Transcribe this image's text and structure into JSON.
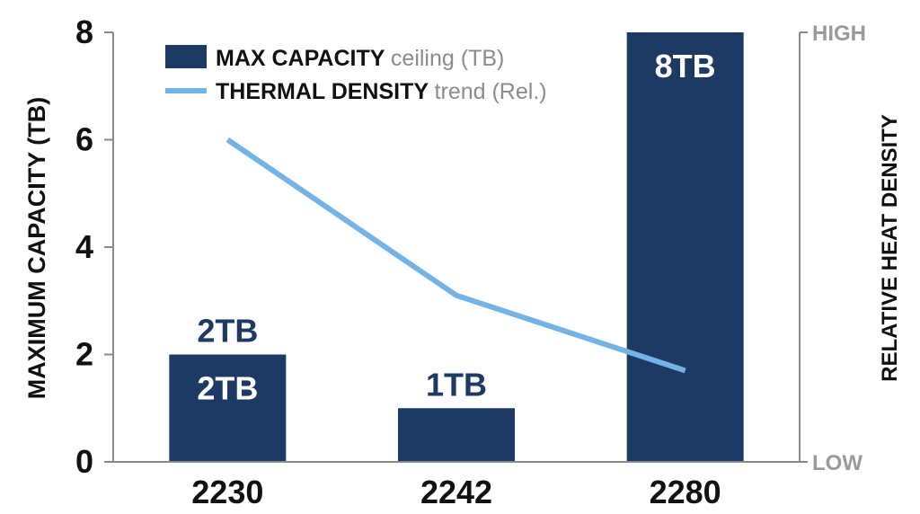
{
  "chart_data": {
    "type": "bar",
    "categories": [
      "2230",
      "2242",
      "2280"
    ],
    "series": [
      {
        "name": "MAX CAPACITY ceiling (TB)",
        "kind": "bar",
        "values": [
          2,
          1,
          8
        ],
        "labels": [
          "2TB",
          "1TB",
          "8TB"
        ],
        "color": "#1d3a64"
      },
      {
        "name": "THERMAL DENSITY trend (Rel.)",
        "kind": "line",
        "values": [
          6,
          3.1,
          1.7
        ],
        "color": "#74b3e6"
      }
    ],
    "extra_label": {
      "category": "2230",
      "text": "2TB"
    },
    "ylabel": "MAXIMUM CAPACITY (TB)",
    "y2label": "RELATIVE HEAT DENSITY",
    "ylim": [
      0,
      8
    ],
    "yticks": [
      "0",
      "2",
      "4",
      "6",
      "8"
    ],
    "y2ticks": {
      "high": "HIGH",
      "low": "LOW"
    },
    "grid": false,
    "legend": {
      "position": "top-left",
      "entries": [
        {
          "bold": "MAX CAPACITY",
          "light": "ceiling (TB)"
        },
        {
          "bold": "THERMAL DENSITY",
          "light": "trend (Rel.)"
        }
      ]
    }
  }
}
